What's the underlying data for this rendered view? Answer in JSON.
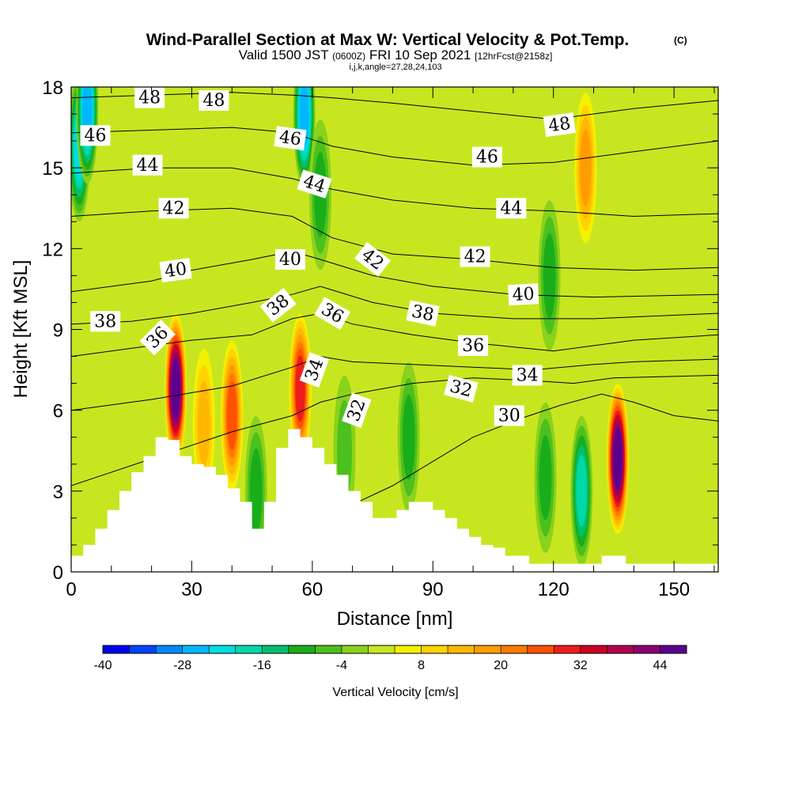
{
  "chart_data": {
    "type": "heatmap",
    "title": "Wind-Parallel Section at Max W: Vertical Velocity & Pot.Temp.",
    "title_mark": "(C)",
    "subtitle_prefix": "Valid 1500 JST",
    "subtitle_utc": "(0600Z)",
    "subtitle_date": "FRI 10 Sep 2021",
    "subtitle_fcst": "[12hrFcst@2158z]",
    "subtitle2": "i,j,k,angle=27,28,24,103",
    "xlabel": "Distance [nm]",
    "ylabel": "Height [Kft MSL]",
    "xlim": [
      0,
      161
    ],
    "ylim": [
      0,
      18
    ],
    "x_ticks": [
      0,
      30,
      60,
      90,
      120,
      150
    ],
    "y_ticks": [
      0,
      3,
      6,
      9,
      12,
      15,
      18
    ],
    "colorbar": {
      "label": "Vertical Velocity [cm/s]",
      "levels": [
        -40,
        -36,
        -32,
        -28,
        -24,
        -20,
        -16,
        -12,
        -8,
        -4,
        0,
        4,
        8,
        12,
        16,
        20,
        24,
        28,
        32,
        36,
        40,
        44
      ],
      "tick_labels": [
        "-40",
        "-28",
        "-16",
        "-4",
        "8",
        "20",
        "32",
        "44"
      ],
      "colors": [
        "#0000ee",
        "#0044ff",
        "#0088ff",
        "#00b8ff",
        "#00dde0",
        "#00d8a8",
        "#00c070",
        "#1aad1a",
        "#4cc01c",
        "#8ad21c",
        "#c8e620",
        "#f2f200",
        "#ffd200",
        "#ffb800",
        "#ff9c00",
        "#ff7a00",
        "#ff5200",
        "#ee1c1c",
        "#cc0022",
        "#b0004e",
        "#8c006e",
        "#5c0090"
      ]
    },
    "vertical_velocity_features": [
      {
        "x": 2,
        "y": 15.8,
        "value": -24
      },
      {
        "x": 4,
        "y": 17.2,
        "value": -28
      },
      {
        "x": 26,
        "y": 6.8,
        "value": 44
      },
      {
        "x": 33,
        "y": 5.5,
        "value": 12
      },
      {
        "x": 40,
        "y": 5.8,
        "value": 24
      },
      {
        "x": 46,
        "y": 3.0,
        "value": -12
      },
      {
        "x": 57,
        "y": 6.8,
        "value": 28
      },
      {
        "x": 58,
        "y": 17.0,
        "value": -28
      },
      {
        "x": 62,
        "y": 14.0,
        "value": -12
      },
      {
        "x": 68,
        "y": 4.5,
        "value": -8
      },
      {
        "x": 84,
        "y": 5.0,
        "value": -12
      },
      {
        "x": 118,
        "y": 3.5,
        "value": -12
      },
      {
        "x": 127,
        "y": 3.0,
        "value": -20
      },
      {
        "x": 136,
        "y": 4.2,
        "value": 44
      },
      {
        "x": 119,
        "y": 11.0,
        "value": -12
      },
      {
        "x": 128,
        "y": 15.0,
        "value": 16
      }
    ],
    "terrain": {
      "x": [
        0,
        3,
        3,
        6,
        6,
        9,
        9,
        12,
        12,
        15,
        15,
        18,
        18,
        21,
        21,
        24,
        24,
        27,
        27,
        30,
        30,
        33,
        33,
        36,
        36,
        39,
        39,
        42,
        42,
        45,
        45,
        48,
        48,
        51,
        51,
        54,
        54,
        57,
        57,
        60,
        60,
        63,
        63,
        66,
        66,
        69,
        69,
        72,
        72,
        75,
        75,
        78,
        78,
        81,
        81,
        84,
        84,
        87,
        87,
        90,
        90,
        93,
        93,
        96,
        96,
        99,
        99,
        102,
        102,
        105,
        105,
        108,
        108,
        111,
        111,
        114,
        114,
        117,
        117,
        120,
        120,
        123,
        123,
        126,
        126,
        129,
        129,
        132,
        132,
        135,
        135,
        138,
        138,
        141,
        141,
        144,
        144,
        147,
        147,
        150,
        150,
        153,
        153,
        156,
        156,
        159,
        159,
        161
      ],
      "y": [
        0.6,
        0.6,
        1.0,
        1.0,
        1.6,
        1.6,
        2.3,
        2.3,
        3.0,
        3.0,
        3.7,
        3.7,
        4.3,
        4.3,
        5.0,
        5.0,
        4.9,
        4.9,
        4.3,
        4.3,
        4.0,
        4.0,
        3.9,
        3.9,
        3.6,
        3.6,
        3.1,
        3.1,
        2.6,
        2.6,
        1.6,
        1.6,
        2.6,
        2.6,
        4.6,
        4.6,
        5.3,
        5.3,
        5.0,
        5.0,
        4.6,
        4.6,
        4.0,
        4.0,
        3.6,
        3.6,
        3.0,
        3.0,
        2.6,
        2.6,
        2.0,
        2.0,
        2.0,
        2.0,
        2.3,
        2.3,
        2.6,
        2.6,
        2.6,
        2.6,
        2.3,
        2.3,
        2.0,
        2.0,
        1.6,
        1.6,
        1.3,
        1.3,
        1.0,
        1.0,
        0.9,
        0.9,
        0.6,
        0.6,
        0.6,
        0.6,
        0.3,
        0.3,
        0.3,
        0.3,
        0.3,
        0.3,
        0.3,
        0.3,
        0.3,
        0.3,
        0.3,
        0.3,
        0.6,
        0.6,
        0.6,
        0.6,
        0.3,
        0.3,
        0.3,
        0.3,
        0.3,
        0.3,
        0.3,
        0.3,
        0.3,
        0.3,
        0.3,
        0.3,
        0.3,
        0.3,
        0.3,
        0.3
      ]
    },
    "potential_temperature_contours": [
      {
        "theta": 30,
        "x": [
          60,
          80,
          100,
          112,
          122,
          132,
          140,
          150,
          161
        ],
        "y": [
          1.8,
          3.2,
          5.0,
          5.7,
          6.2,
          6.6,
          6.3,
          5.8,
          5.6
        ]
      },
      {
        "theta": 32,
        "x": [
          0,
          20,
          40,
          55,
          62,
          70,
          85,
          100,
          115,
          125,
          135,
          161
        ],
        "y": [
          3.2,
          4.2,
          5.2,
          5.8,
          6.3,
          6.6,
          7.0,
          7.2,
          7.1,
          7.0,
          7.2,
          7.3
        ]
      },
      {
        "theta": 34,
        "x": [
          0,
          20,
          40,
          55,
          62,
          70,
          85,
          100,
          115,
          130,
          140,
          161
        ],
        "y": [
          6.0,
          6.4,
          6.9,
          7.6,
          8.0,
          7.8,
          7.7,
          7.6,
          7.5,
          7.7,
          7.8,
          7.9
        ]
      },
      {
        "theta": 36,
        "x": [
          0,
          20,
          30,
          45,
          55,
          62,
          70,
          85,
          100,
          120,
          140,
          161
        ],
        "y": [
          8.0,
          8.4,
          8.6,
          8.8,
          9.4,
          9.6,
          9.2,
          8.8,
          8.5,
          8.2,
          8.6,
          8.8
        ]
      },
      {
        "theta": 38,
        "x": [
          0,
          15,
          30,
          45,
          55,
          62,
          75,
          90,
          110,
          130,
          161
        ],
        "y": [
          9.2,
          9.3,
          9.6,
          10.0,
          10.3,
          10.6,
          10.0,
          9.6,
          9.4,
          9.4,
          9.6
        ]
      },
      {
        "theta": 40,
        "x": [
          0,
          20,
          30,
          45,
          55,
          62,
          75,
          90,
          110,
          130,
          161
        ],
        "y": [
          10.4,
          10.8,
          11.2,
          11.6,
          11.9,
          11.6,
          11.0,
          10.6,
          10.3,
          10.2,
          10.3
        ]
      },
      {
        "theta": 42,
        "x": [
          0,
          20,
          40,
          55,
          65,
          80,
          100,
          120,
          140,
          161
        ],
        "y": [
          13.2,
          13.4,
          13.5,
          13.2,
          12.4,
          11.8,
          11.6,
          11.3,
          11.2,
          11.3
        ]
      },
      {
        "theta": 44,
        "x": [
          0,
          20,
          40,
          55,
          65,
          80,
          100,
          120,
          140,
          161
        ],
        "y": [
          14.8,
          15.0,
          15.0,
          14.6,
          14.2,
          13.8,
          13.5,
          13.4,
          13.2,
          13.3
        ]
      },
      {
        "theta": 46,
        "x": [
          0,
          20,
          40,
          55,
          65,
          80,
          100,
          120,
          140,
          161
        ],
        "y": [
          16.3,
          16.4,
          16.5,
          16.3,
          15.8,
          15.4,
          15.1,
          15.2,
          15.6,
          16.0
        ]
      },
      {
        "theta": 48,
        "x": [
          0,
          20,
          40,
          55,
          65,
          80,
          100,
          120,
          140,
          161
        ],
        "y": [
          17.6,
          17.7,
          17.8,
          17.7,
          17.6,
          17.4,
          17.1,
          16.8,
          17.2,
          17.5
        ]
      }
    ],
    "contour_labels": [
      {
        "text": "48",
        "x": 19.5,
        "y": 17.6,
        "rotate": 0
      },
      {
        "text": "48",
        "x": 35.5,
        "y": 17.5,
        "rotate": 0
      },
      {
        "text": "46",
        "x": 6.0,
        "y": 16.2,
        "rotate": 0
      },
      {
        "text": "46",
        "x": 54.5,
        "y": 16.1,
        "rotate": 8
      },
      {
        "text": "46",
        "x": 103.5,
        "y": 15.4,
        "rotate": 0
      },
      {
        "text": "48",
        "x": 121.5,
        "y": 16.6,
        "rotate": -8
      },
      {
        "text": "44",
        "x": 19.0,
        "y": 15.1,
        "rotate": 0
      },
      {
        "text": "44",
        "x": 60.5,
        "y": 14.4,
        "rotate": 18
      },
      {
        "text": "44",
        "x": 109.5,
        "y": 13.5,
        "rotate": 0
      },
      {
        "text": "42",
        "x": 25.5,
        "y": 13.5,
        "rotate": 0
      },
      {
        "text": "42",
        "x": 75.0,
        "y": 11.6,
        "rotate": 38
      },
      {
        "text": "42",
        "x": 100.5,
        "y": 11.7,
        "rotate": 0
      },
      {
        "text": "40",
        "x": 26.0,
        "y": 11.2,
        "rotate": -8
      },
      {
        "text": "40",
        "x": 54.5,
        "y": 11.6,
        "rotate": 0
      },
      {
        "text": "40",
        "x": 112.5,
        "y": 10.3,
        "rotate": -3
      },
      {
        "text": "38",
        "x": 8.5,
        "y": 9.3,
        "rotate": 0
      },
      {
        "text": "38",
        "x": 51.5,
        "y": 9.9,
        "rotate": -38
      },
      {
        "text": "38",
        "x": 87.5,
        "y": 9.6,
        "rotate": 12
      },
      {
        "text": "36",
        "x": 21.5,
        "y": 8.7,
        "rotate": -45
      },
      {
        "text": "36",
        "x": 65.0,
        "y": 9.6,
        "rotate": 30
      },
      {
        "text": "36",
        "x": 100.0,
        "y": 8.4,
        "rotate": 0
      },
      {
        "text": "34",
        "x": 60.5,
        "y": 7.5,
        "rotate": -70
      },
      {
        "text": "34",
        "x": 113.5,
        "y": 7.3,
        "rotate": 0
      },
      {
        "text": "32",
        "x": 71.0,
        "y": 6.0,
        "rotate": -70
      },
      {
        "text": "32",
        "x": 97.0,
        "y": 6.8,
        "rotate": 15
      },
      {
        "text": "30",
        "x": 109.0,
        "y": 5.8,
        "rotate": 0
      }
    ]
  }
}
